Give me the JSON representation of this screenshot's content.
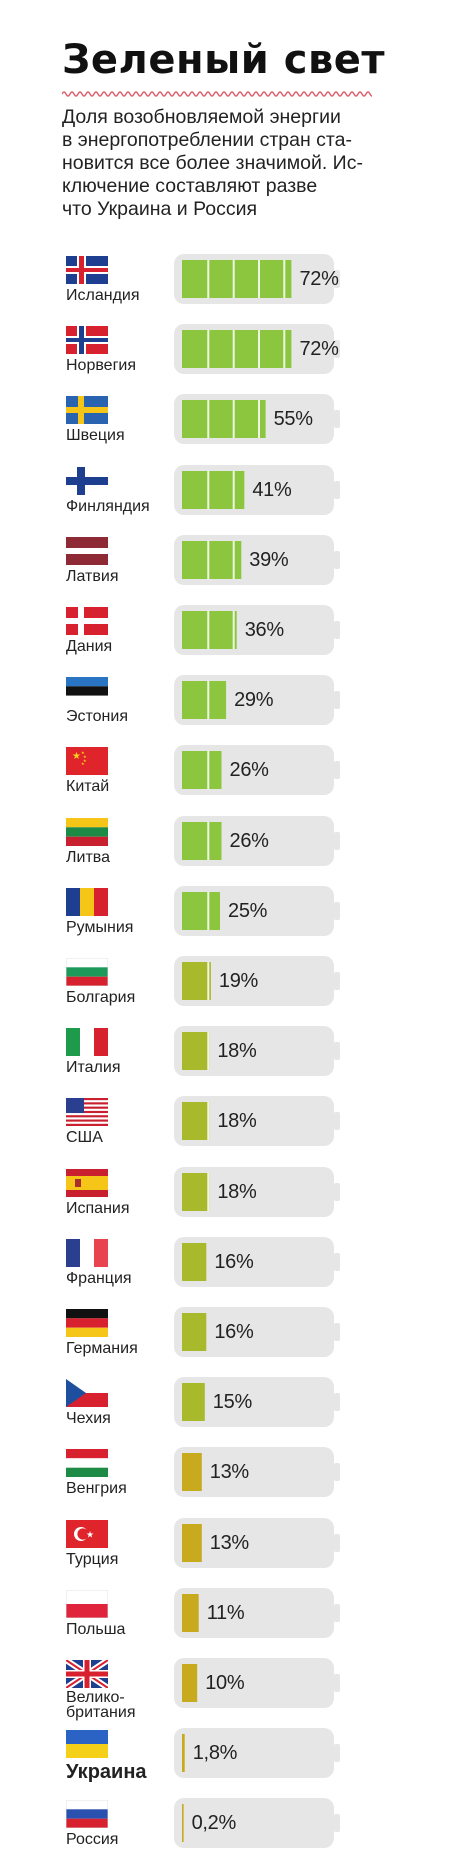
{
  "title": "Зеленый свет",
  "subtitle": "Доля возобновляемой энергии в энергопотреблении стран становится все более значимой. Исключение составляют разве что Украина и Россия",
  "subtitle_lines": [
    "Доля возобновляемой энергии",
    "в энергопотреблении стран ста-",
    "новится все более значимой. Ис-",
    "ключение составляют разве",
    "что Украина и Россия"
  ],
  "colors": {
    "title_wave": "#e0606a",
    "battery_shell": "#e6e6e6",
    "fill_high": "#8cc63f",
    "fill_mid": "#a8b92c",
    "fill_low": "#c8aa1e"
  },
  "chart_data": {
    "type": "bar",
    "unit": "%",
    "categories": [
      "Исландия",
      "Норвегия",
      "Швеция",
      "Финляндия",
      "Латвия",
      "Дания",
      "Эстония",
      "Китай",
      "Литва",
      "Румыния",
      "Болгария",
      "Италия",
      "США",
      "Испания",
      "Франция",
      "Германия",
      "Чехия",
      "Венгрия",
      "Турция",
      "Польша",
      "Велико-британия",
      "Украина",
      "Россия"
    ],
    "values": [
      72,
      72,
      55,
      41,
      39,
      36,
      29,
      26,
      26,
      25,
      19,
      18,
      18,
      18,
      16,
      16,
      15,
      13,
      13,
      11,
      10,
      1.8,
      0.2
    ],
    "value_labels": [
      "72%",
      "72%",
      "55%",
      "41%",
      "39%",
      "36%",
      "29%",
      "26%",
      "26%",
      "25%",
      "19%",
      "18%",
      "18%",
      "18%",
      "16%",
      "16%",
      "15%",
      "13%",
      "13%",
      "11%",
      "10%",
      "1,8%",
      "0,2%"
    ],
    "flag_icons": [
      "iceland-flag-icon",
      "norway-flag-icon",
      "sweden-flag-icon",
      "finland-flag-icon",
      "latvia-flag-icon",
      "denmark-flag-icon",
      "estonia-flag-icon",
      "china-flag-icon",
      "lithuania-flag-icon",
      "romania-flag-icon",
      "bulgaria-flag-icon",
      "italy-flag-icon",
      "usa-flag-icon",
      "spain-flag-icon",
      "france-flag-icon",
      "germany-flag-icon",
      "czechia-flag-icon",
      "hungary-flag-icon",
      "turkey-flag-icon",
      "poland-flag-icon",
      "uk-flag-icon",
      "ukraine-flag-icon",
      "russia-flag-icon"
    ],
    "highlighted": [
      "Украина"
    ],
    "xlim": [
      0,
      100
    ],
    "title": "Зеленый свет",
    "xlabel": "",
    "ylabel": ""
  }
}
